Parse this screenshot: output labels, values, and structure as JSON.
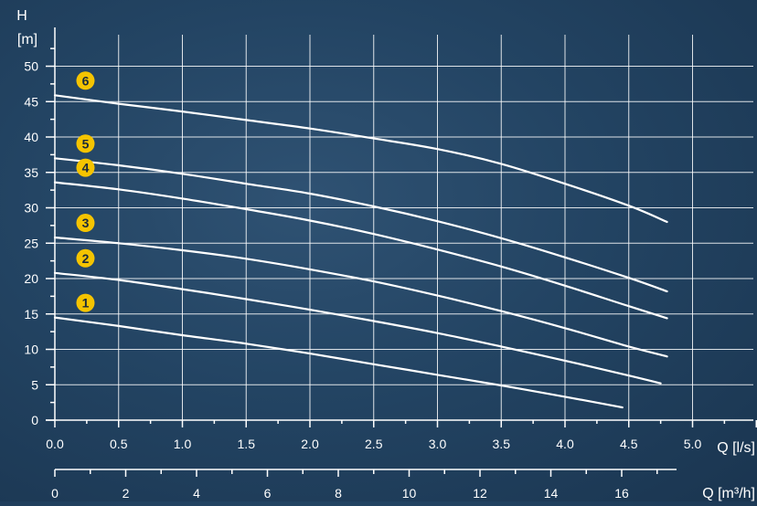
{
  "chart_data": {
    "type": "line",
    "xlabel": "Q [l/s]",
    "x2label": "Q [m³/h]",
    "ylabel": "H",
    "yunit": "[m]",
    "xlim": [
      0,
      5.6
    ],
    "ylim": [
      0,
      55
    ],
    "grid": true,
    "x_ticks": [
      "0.0",
      "0.5",
      "1.0",
      "1.5",
      "2.0",
      "2.5",
      "3.0",
      "3.5",
      "4.0",
      "4.5",
      "5.0"
    ],
    "y_ticks": [
      "0",
      "5",
      "10",
      "15",
      "20",
      "25",
      "30",
      "35",
      "40",
      "45",
      "50"
    ],
    "x2_ticks": [
      "0",
      "2",
      "4",
      "6",
      "8",
      "10",
      "12",
      "14",
      "16"
    ],
    "series": [
      {
        "name": "1",
        "x": [
          0,
          0.5,
          1.0,
          1.5,
          2.0,
          2.5,
          3.0,
          3.5,
          4.0,
          4.45
        ],
        "y": [
          14.5,
          13.3,
          12.0,
          10.8,
          9.4,
          7.9,
          6.4,
          4.9,
          3.3,
          1.8
        ]
      },
      {
        "name": "2",
        "x": [
          0,
          0.5,
          1.0,
          1.5,
          2.0,
          2.5,
          3.0,
          3.5,
          4.0,
          4.5,
          4.75
        ],
        "y": [
          20.8,
          19.8,
          18.5,
          17.1,
          15.6,
          14.0,
          12.3,
          10.4,
          8.4,
          6.3,
          5.2
        ]
      },
      {
        "name": "3",
        "x": [
          0,
          0.5,
          1.0,
          1.5,
          2.0,
          2.5,
          3.0,
          3.5,
          4.0,
          4.5,
          4.8
        ],
        "y": [
          25.8,
          25.0,
          24.0,
          22.8,
          21.3,
          19.6,
          17.6,
          15.4,
          13.0,
          10.4,
          9.0
        ]
      },
      {
        "name": "4",
        "x": [
          0,
          0.5,
          1.0,
          1.5,
          2.0,
          2.5,
          3.0,
          3.5,
          4.0,
          4.5,
          4.8
        ],
        "y": [
          33.6,
          32.6,
          31.3,
          29.8,
          28.2,
          26.3,
          24.1,
          21.7,
          19.0,
          16.1,
          14.4
        ]
      },
      {
        "name": "5",
        "x": [
          0,
          0.5,
          1.0,
          1.5,
          2.0,
          2.5,
          3.0,
          3.5,
          4.0,
          4.5,
          4.8
        ],
        "y": [
          37.0,
          36.0,
          34.8,
          33.4,
          32.0,
          30.2,
          28.1,
          25.7,
          23.0,
          20.1,
          18.2
        ]
      },
      {
        "name": "6",
        "x": [
          0,
          0.5,
          1.0,
          1.5,
          2.0,
          2.5,
          3.0,
          3.5,
          4.0,
          4.5,
          4.8
        ],
        "y": [
          45.9,
          44.7,
          43.6,
          42.4,
          41.2,
          39.8,
          38.3,
          36.2,
          33.4,
          30.3,
          28.0
        ]
      }
    ],
    "badge_color": "#f5c400"
  }
}
